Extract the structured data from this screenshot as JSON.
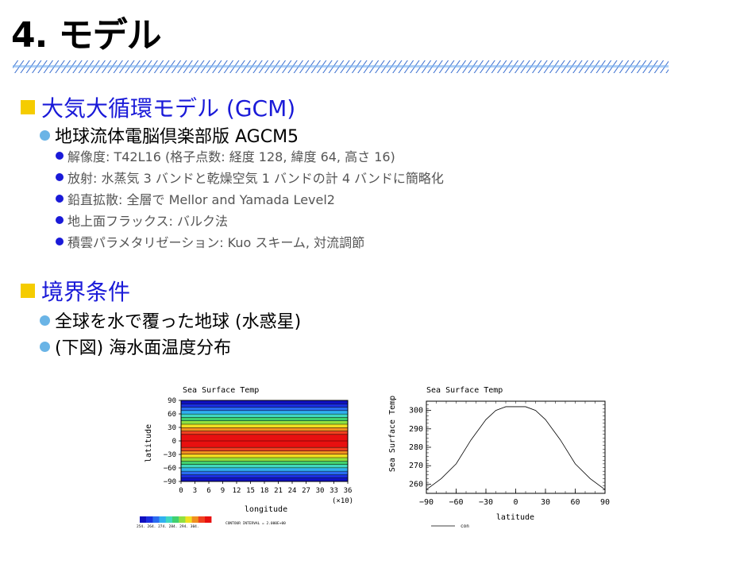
{
  "slide": {
    "title": "4. モデル",
    "section1": {
      "heading": "大気大循環モデル (GCM)",
      "sub": "地球流体電脳倶楽部版 AGCM5",
      "items": [
        "解像度: T42L16 (格子点数: 経度 128, 緯度 64, 高さ 16)",
        "放射: 水蒸気 3 バンドと乾燥空気 1 バンドの計 4 バンドに簡略化",
        "鉛直拡散: 全層で Mellor and Yamada Level2",
        "地上面フラックス: バルク法",
        "積雲パラメタリゼーション: Kuo スキーム, 対流調節"
      ]
    },
    "section2": {
      "heading": "境界条件",
      "items": [
        "全球を水で覆った地球 (水惑星)",
        "(下図) 海水面温度分布"
      ]
    },
    "colors": {
      "heading": "#1a1ad8",
      "square": "#f5cc00",
      "bullet2": "#6ab4e6",
      "bullet3": "#1a1ad8"
    }
  },
  "map": {
    "title": "Sea Surface Temp",
    "ylabel": "latitude",
    "xlabel": "longitude",
    "xscale": "(×10)",
    "yticks": [
      "90",
      "60",
      "30",
      "0",
      "−30",
      "−60",
      "−90"
    ],
    "xticks": [
      "0",
      "3",
      "6",
      "9",
      "12",
      "15",
      "18",
      "21",
      "24",
      "27",
      "30",
      "33",
      "36"
    ],
    "colorbar_labels": "254. 264. 274. 284. 294. 304.",
    "contour_note": "CONTOUR INTERVAL = 2.000E+00"
  },
  "chart_data": {
    "type": "line",
    "title": "Sea Surface Temp",
    "xlabel": "latitude",
    "ylabel": "Sea Surface Temp",
    "xlim": [
      -90,
      90
    ],
    "ylim": [
      255,
      305
    ],
    "xticks": [
      -90,
      -60,
      -30,
      0,
      30,
      60,
      90
    ],
    "yticks": [
      260,
      270,
      280,
      290,
      300
    ],
    "legend": "con",
    "series": [
      {
        "name": "con",
        "x": [
          -90,
          -75,
          -60,
          -45,
          -30,
          -20,
          -10,
          0,
          10,
          20,
          30,
          45,
          60,
          75,
          90
        ],
        "y": [
          257,
          263,
          271,
          284,
          295,
          300,
          302,
          302,
          302,
          300,
          295,
          284,
          271,
          263,
          257
        ]
      }
    ]
  }
}
